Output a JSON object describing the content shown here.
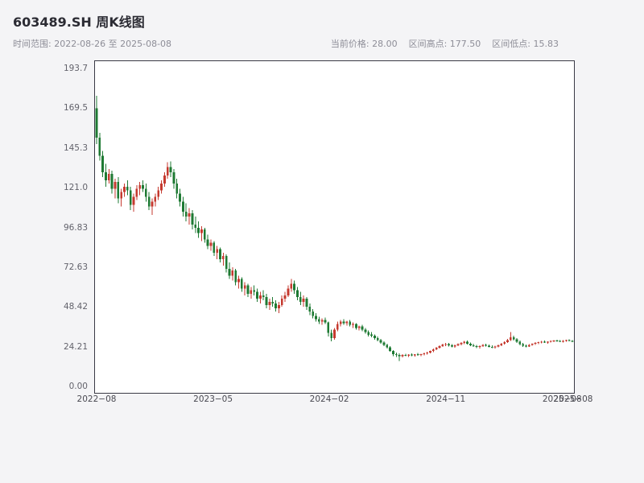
{
  "header": {
    "title": "603489.SH 周K线图",
    "time_range": "时间范围: 2022-08-26 至 2025-08-08",
    "current_price": "当前价格: 28.00",
    "range_high": "区间高点: 177.50",
    "range_low": "区间低点: 15.83"
  },
  "chart_data": {
    "type": "candlestick",
    "symbol": "603489.SH",
    "period": "weekly",
    "title": "603489.SH 周K线图",
    "date_start": "2022-08-26",
    "date_end": "2025-08-08",
    "current_price": 28.0,
    "range_high": 177.5,
    "range_low": 15.83,
    "grid": false,
    "ylim": [
      0,
      193.7
    ],
    "y_ticks": [
      "193.7",
      "169.5",
      "145.3",
      "121.0",
      "96.83",
      "72.63",
      "48.42",
      "24.21",
      "0.00"
    ],
    "x_ticks": [
      {
        "label": "2022−08",
        "pos": 0.005
      },
      {
        "label": "2023−05",
        "pos": 0.248
      },
      {
        "label": "2024−02",
        "pos": 0.491
      },
      {
        "label": "2024−11",
        "pos": 0.734
      },
      {
        "label": "2025−08",
        "pos": 0.977
      },
      {
        "label": "2025−08",
        "pos": 1.0
      }
    ],
    "up_color": "#c53a2f",
    "down_color": "#1e7a33",
    "candles_format": [
      "open",
      "high",
      "low",
      "close"
    ],
    "candles": [
      [
        170,
        177.5,
        148,
        152
      ],
      [
        152,
        155,
        138,
        141
      ],
      [
        141,
        144,
        128,
        131
      ],
      [
        131,
        136,
        122,
        126
      ],
      [
        126,
        133,
        124,
        130
      ],
      [
        130,
        132,
        118,
        121
      ],
      [
        121,
        127,
        115,
        125
      ],
      [
        125,
        128,
        112,
        115
      ],
      [
        115,
        121,
        110,
        119
      ],
      [
        119,
        124,
        116,
        122
      ],
      [
        122,
        126,
        117,
        120
      ],
      [
        120,
        122,
        108,
        111
      ],
      [
        111,
        118,
        107,
        116
      ],
      [
        116,
        123,
        114,
        121
      ],
      [
        121,
        125,
        117,
        123
      ],
      [
        123,
        126,
        119,
        121
      ],
      [
        121,
        124,
        113,
        116
      ],
      [
        116,
        119,
        108,
        110
      ],
      [
        110,
        115,
        105,
        113
      ],
      [
        113,
        118,
        110,
        116
      ],
      [
        116,
        122,
        114,
        120
      ],
      [
        120,
        126,
        118,
        124
      ],
      [
        124,
        131,
        122,
        129
      ],
      [
        129,
        137,
        127,
        134
      ],
      [
        134,
        137.5,
        128,
        131
      ],
      [
        131,
        133,
        121,
        124
      ],
      [
        124,
        127,
        115,
        118
      ],
      [
        118,
        121,
        110,
        113
      ],
      [
        113,
        116,
        104,
        107
      ],
      [
        107,
        112,
        101,
        104
      ],
      [
        104,
        109,
        99,
        106
      ],
      [
        106,
        108,
        96,
        99
      ],
      [
        99,
        104,
        94,
        97
      ],
      [
        97,
        101,
        91,
        94
      ],
      [
        94,
        98,
        89,
        96
      ],
      [
        96,
        97,
        88,
        90
      ],
      [
        90,
        93,
        84,
        86
      ],
      [
        86,
        90,
        83,
        88
      ],
      [
        88,
        89,
        80,
        82
      ],
      [
        82,
        86,
        78,
        84
      ],
      [
        84,
        85,
        76,
        78
      ],
      [
        78,
        82,
        74,
        80
      ],
      [
        80,
        81,
        70,
        72
      ],
      [
        72,
        76,
        66,
        68
      ],
      [
        68,
        73,
        65,
        71
      ],
      [
        71,
        72,
        62,
        64
      ],
      [
        64,
        68,
        60,
        66
      ],
      [
        66,
        67,
        58,
        60
      ],
      [
        60,
        64,
        56,
        62
      ],
      [
        62,
        63,
        55,
        57
      ],
      [
        57,
        61,
        54,
        59
      ],
      [
        59,
        62,
        56,
        58
      ],
      [
        58,
        60,
        52,
        54
      ],
      [
        54,
        58,
        51,
        56
      ],
      [
        56,
        59,
        53,
        55
      ],
      [
        55,
        57,
        48,
        50
      ],
      [
        50,
        54,
        47,
        52
      ],
      [
        52,
        55,
        49,
        51
      ],
      [
        51,
        53,
        46,
        48
      ],
      [
        48,
        52,
        45,
        50
      ],
      [
        50,
        56,
        49,
        54
      ],
      [
        54,
        58,
        52,
        56
      ],
      [
        56,
        62,
        55,
        60
      ],
      [
        60,
        66,
        58,
        63
      ],
      [
        63,
        65,
        57,
        59
      ],
      [
        59,
        61,
        53,
        55
      ],
      [
        55,
        58,
        50,
        52
      ],
      [
        52,
        56,
        49,
        54
      ],
      [
        54,
        55,
        47,
        49
      ],
      [
        49,
        51,
        44,
        46
      ],
      [
        46,
        47.5,
        42,
        43.5
      ],
      [
        43.5,
        45,
        40,
        41.5
      ],
      [
        41.5,
        43,
        38.5,
        40
      ],
      [
        40,
        42,
        38,
        41
      ],
      [
        41,
        42.5,
        38.5,
        39.5
      ],
      [
        39.5,
        40,
        31,
        33
      ],
      [
        33,
        35,
        28,
        30
      ],
      [
        30,
        36,
        29,
        35
      ],
      [
        35,
        40,
        34,
        38.5
      ],
      [
        38.5,
        41,
        37,
        40
      ],
      [
        40,
        41.5,
        38,
        39
      ],
      [
        39,
        40.5,
        37.5,
        40
      ],
      [
        40,
        41,
        37,
        38
      ],
      [
        38,
        39.5,
        36,
        38.5
      ],
      [
        38.5,
        39,
        35,
        36
      ],
      [
        36,
        37.5,
        34.5,
        37
      ],
      [
        37,
        38,
        34,
        35
      ],
      [
        35,
        36,
        32.5,
        33.5
      ],
      [
        33.5,
        34.5,
        31,
        32
      ],
      [
        32,
        33.5,
        30.5,
        31.5
      ],
      [
        31.5,
        32,
        29,
        30
      ],
      [
        30,
        31,
        28,
        28.8
      ],
      [
        28.8,
        29.5,
        26.5,
        27.2
      ],
      [
        27.2,
        28,
        25,
        25.8
      ],
      [
        25.8,
        26.5,
        23.5,
        24.2
      ],
      [
        24.2,
        25,
        21.5,
        22
      ],
      [
        22,
        22.5,
        19,
        20
      ],
      [
        20,
        21,
        18.5,
        19.5
      ],
      [
        19.5,
        20.5,
        15.83,
        19
      ],
      [
        19,
        20,
        18.2,
        19.6
      ],
      [
        19.6,
        20.4,
        18.8,
        19.2
      ],
      [
        19.2,
        20,
        18.4,
        19.8
      ],
      [
        19.8,
        20.6,
        19,
        19.4
      ],
      [
        19.4,
        20.2,
        18.6,
        20
      ],
      [
        20,
        20.8,
        19.2,
        19.6
      ],
      [
        19.6,
        20.4,
        18.8,
        20.2
      ],
      [
        20.2,
        21,
        19.4,
        20.6
      ],
      [
        20.6,
        21.5,
        19.8,
        21.2
      ],
      [
        21.2,
        22.4,
        20.6,
        22
      ],
      [
        22,
        23.5,
        21.4,
        23
      ],
      [
        23,
        24.5,
        22.5,
        24
      ],
      [
        24,
        25.5,
        23.5,
        25
      ],
      [
        25,
        26.5,
        24.5,
        26
      ],
      [
        26,
        27,
        25,
        26.2
      ],
      [
        26.2,
        27,
        24.8,
        25.4
      ],
      [
        25.4,
        26.2,
        24.2,
        24.8
      ],
      [
        24.8,
        26,
        24,
        25.5
      ],
      [
        25.5,
        26.8,
        25,
        26.2
      ],
      [
        26.2,
        27.4,
        25.6,
        27
      ],
      [
        27,
        28.2,
        26.2,
        27.6
      ],
      [
        27.6,
        28.4,
        26,
        26.6
      ],
      [
        26.6,
        27.2,
        25,
        25.5
      ],
      [
        25.5,
        26.4,
        24.6,
        25
      ],
      [
        25,
        25.8,
        23.8,
        24.4
      ],
      [
        24.4,
        25.5,
        23.6,
        25
      ],
      [
        25,
        26.2,
        24.4,
        25.8
      ],
      [
        25.8,
        26.6,
        24.8,
        25.2
      ],
      [
        25.2,
        26,
        24.2,
        24.6
      ],
      [
        24.6,
        25.4,
        23.8,
        24.2
      ],
      [
        24.2,
        25.2,
        23.6,
        24.8
      ],
      [
        24.8,
        26,
        24.2,
        25.6
      ],
      [
        25.6,
        27,
        25,
        26.4
      ],
      [
        26.4,
        28,
        26,
        27.4
      ],
      [
        27.4,
        29.5,
        27,
        28.8
      ],
      [
        28.8,
        33.5,
        28.2,
        30.5
      ],
      [
        30.5,
        31.5,
        28.5,
        29.2
      ],
      [
        29.2,
        30,
        27,
        27.8
      ],
      [
        27.8,
        28.5,
        25.5,
        26.2
      ],
      [
        26.2,
        27,
        24.5,
        25.2
      ],
      [
        25.2,
        26,
        24.2,
        24.8
      ],
      [
        24.8,
        26.2,
        24.4,
        25.8
      ],
      [
        25.8,
        26.8,
        25.2,
        26.4
      ],
      [
        26.4,
        27.4,
        25.8,
        27
      ],
      [
        27,
        27.8,
        26.2,
        27.4
      ],
      [
        27.4,
        28.2,
        26.8,
        27.8
      ],
      [
        27.8,
        28.4,
        27,
        27.4
      ],
      [
        27.4,
        28,
        26.6,
        27.7
      ],
      [
        27.7,
        28.5,
        27.2,
        28.1
      ],
      [
        28.1,
        28.8,
        27.5,
        28.4
      ],
      [
        28.4,
        29,
        27.8,
        28.2
      ],
      [
        28.2,
        28.8,
        27.4,
        27.9
      ],
      [
        27.9,
        28.6,
        27.3,
        28.3
      ],
      [
        28.3,
        29,
        27.8,
        28.6
      ],
      [
        28.6,
        29.1,
        27.9,
        28.2
      ],
      [
        28.2,
        28.7,
        27.5,
        28
      ]
    ]
  }
}
